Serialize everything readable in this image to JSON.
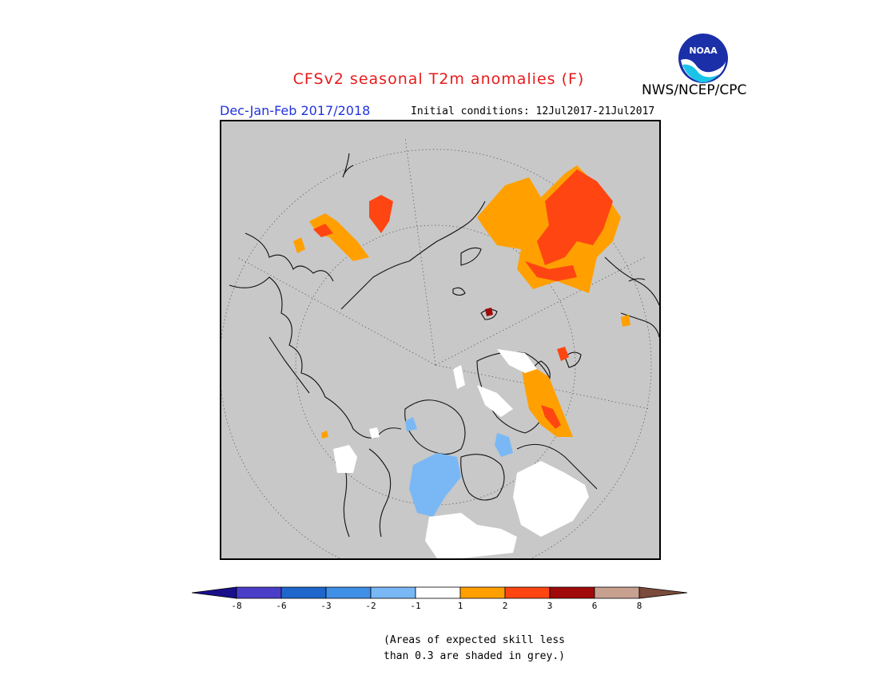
{
  "header": {
    "title": "CFSv2 seasonal T2m anomalies (F)",
    "org": "NWS/NCEP/CPC",
    "logo_text": "NOAA",
    "season": "Dec-Jan-Feb 2017/2018",
    "init_conditions": "Initial conditions: 12Jul2017-21Jul2017"
  },
  "map": {
    "projection": "north polar stereographic",
    "background_color": "#c8c8c8"
  },
  "legend": {
    "ticks": [
      "-8",
      "-6",
      "-3",
      "-2",
      "-1",
      "1",
      "2",
      "3",
      "6",
      "8"
    ],
    "colors": {
      "lt_minus8": "#1a0f8a",
      "m8_m6": "#4a3ec8",
      "m6_m3": "#1f66cc",
      "m3_m2": "#3f8fe6",
      "m2_m1": "#7ab8f5",
      "m1_p1": "#ffffff",
      "p1_p2": "#ffa000",
      "p2_p3": "#ff4512",
      "p3_p6": "#a00a0a",
      "p6_p8": "#c8a090",
      "gt_p8": "#7a4a3a"
    }
  },
  "note": {
    "line1": "(Areas of expected skill less",
    "line2": "than 0.3 are shaded in grey.)"
  }
}
